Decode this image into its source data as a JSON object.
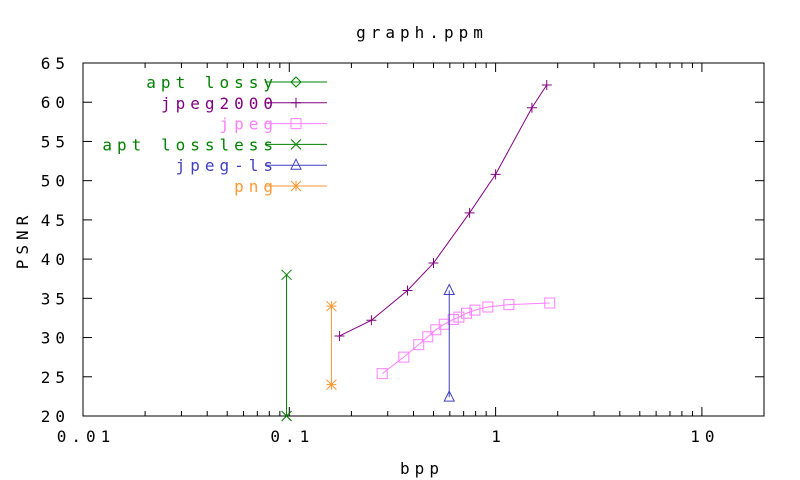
{
  "chart_data": {
    "type": "line",
    "title": "graph.ppm",
    "xlabel": "bpp",
    "ylabel": "PSNR",
    "xscale": "log",
    "xlim": [
      0.01,
      20
    ],
    "ylim": [
      20,
      65
    ],
    "x_ticks": [
      0.01,
      0.1,
      1,
      10
    ],
    "x_tick_labels": [
      "0.01",
      "0.1",
      "1",
      "10"
    ],
    "y_ticks": [
      20,
      25,
      30,
      35,
      40,
      45,
      50,
      55,
      60,
      65
    ],
    "y_tick_labels": [
      "20",
      "25",
      "30",
      "35",
      "40",
      "45",
      "50",
      "55",
      "60",
      "65"
    ],
    "grid": false,
    "legend_position": "top-left",
    "series": [
      {
        "name": "apt lossy",
        "color": "#008000",
        "marker": "diamond",
        "x": [],
        "y": []
      },
      {
        "name": "jpeg2000",
        "color": "#800080",
        "marker": "plus",
        "x": [
          0.175,
          0.25,
          0.374,
          0.5,
          0.748,
          1.0,
          1.5,
          1.77
        ],
        "y": [
          30.2,
          32.2,
          36.0,
          39.5,
          45.9,
          50.8,
          59.3,
          62.2
        ]
      },
      {
        "name": "jpeg",
        "color": "#ff80ff",
        "marker": "square",
        "x": [
          0.282,
          0.359,
          0.424,
          0.469,
          0.513,
          0.564,
          0.623,
          0.664,
          0.723,
          0.794,
          0.917,
          1.16,
          1.83
        ],
        "y": [
          25.4,
          27.5,
          29.1,
          30.1,
          31.0,
          31.7,
          32.3,
          32.6,
          33.1,
          33.5,
          33.9,
          34.2,
          34.4
        ]
      },
      {
        "name": "apt lossless",
        "color": "#008000",
        "marker": "cross",
        "x": [
          0.097,
          0.097
        ],
        "y": [
          20,
          38
        ]
      },
      {
        "name": "jpeg-ls",
        "color": "#4040c0",
        "marker": "triangle",
        "x": [
          0.596,
          0.596
        ],
        "y": [
          22.4,
          36.0
        ]
      },
      {
        "name": "png",
        "color": "#ff9933",
        "marker": "star",
        "x": [
          0.16,
          0.16
        ],
        "y": [
          24,
          34
        ]
      }
    ]
  }
}
